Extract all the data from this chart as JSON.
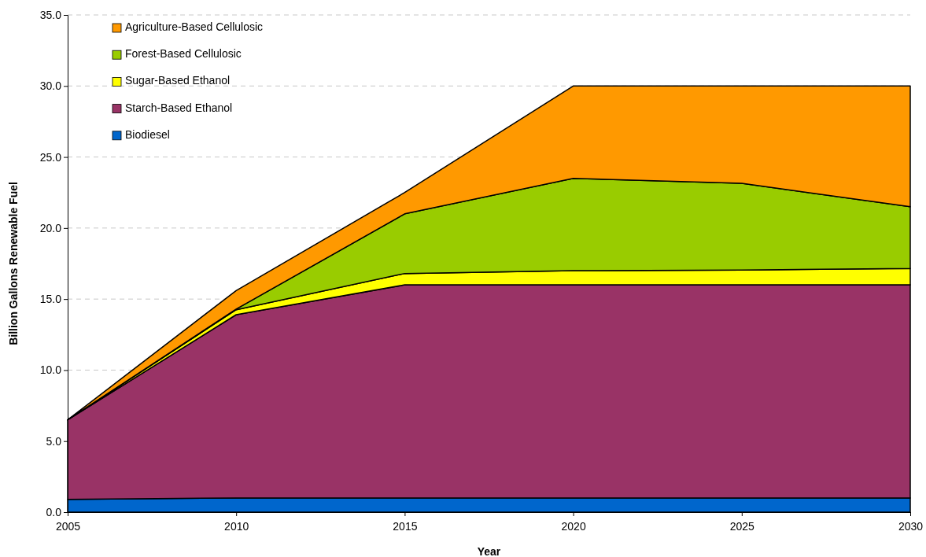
{
  "chart_data": {
    "type": "area",
    "stacked": true,
    "xlabel": "Year",
    "ylabel": "Billion Gallons Renewable Fuel",
    "x": [
      2005,
      2010,
      2015,
      2020,
      2025,
      2030
    ],
    "xlim": [
      2005,
      2030
    ],
    "xticks": [
      2005,
      2010,
      2015,
      2020,
      2025,
      2030
    ],
    "ylim": [
      0,
      35
    ],
    "yticks": [
      {
        "value": 0,
        "label": "0.0"
      },
      {
        "value": 5,
        "label": "5.0"
      },
      {
        "value": 10,
        "label": "10.0"
      },
      {
        "value": 15,
        "label": "15.0"
      },
      {
        "value": 20,
        "label": "20.0"
      },
      {
        "value": 25,
        "label": "25.0"
      },
      {
        "value": 30,
        "label": "30.0"
      },
      {
        "value": 35,
        "label": "35.0"
      }
    ],
    "grid": "y",
    "legend": "top left",
    "series": [
      {
        "name": "Biodiesel",
        "color": "#0066cc",
        "values": [
          0.9,
          1.0,
          1.0,
          1.0,
          1.0,
          1.0
        ]
      },
      {
        "name": "Starch-Based Ethanol",
        "color": "#993366",
        "values": [
          5.6,
          12.9,
          15.0,
          15.0,
          15.0,
          15.0
        ]
      },
      {
        "name": "Sugar-Based Ethanol",
        "color": "#ffff00",
        "values": [
          0,
          0.35,
          0.8,
          1.0,
          1.05,
          1.15
        ]
      },
      {
        "name": "Forest-Based Cellulosic",
        "color": "#99cc00",
        "values": [
          0,
          0.05,
          4.2,
          6.5,
          6.1,
          4.35
        ]
      },
      {
        "name": "Agriculture-Based Cellulosic",
        "color": "#ff9900",
        "values": [
          0,
          1.3,
          1.5,
          6.5,
          6.85,
          8.5
        ]
      }
    ]
  }
}
